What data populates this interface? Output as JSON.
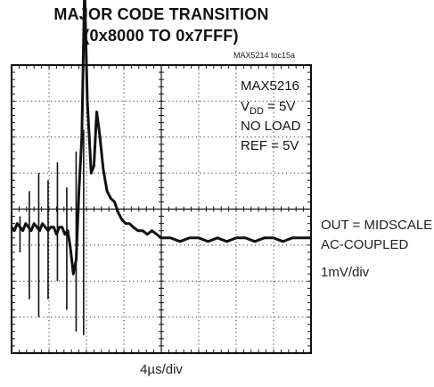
{
  "title": {
    "line1": "MAJOR CODE TRANSITION",
    "line2": "(0x8000 TO 0x7FFF)"
  },
  "figure_tag": "MAX5214 toc15a",
  "chart_data": {
    "type": "line",
    "title": "MAJOR CODE TRANSITION (0x8000 TO 0x7FFF)",
    "x_scale": "4µs/div",
    "y_scale": "1mV/div",
    "divisions": {
      "x": 8,
      "y": 8
    },
    "xlim": [
      0,
      32
    ],
    "ylim": [
      -4,
      4
    ],
    "x_unit": "µs",
    "y_unit": "mV",
    "grid": true,
    "annotations": {
      "device": "MAX5216",
      "vdd_prefix": "V",
      "vdd_sub": "DD",
      "vdd_value": " = 5V",
      "load": "NO LOAD",
      "ref": "REF = 5V"
    },
    "waveform": {
      "name": "OUT",
      "x": [
        0,
        0.3,
        0.6,
        0.9,
        1.2,
        1.5,
        1.8,
        2.1,
        2.4,
        2.7,
        3.0,
        3.3,
        3.6,
        3.9,
        4.2,
        4.5,
        4.8,
        5.1,
        5.4,
        5.7,
        6.0,
        6.3,
        6.6,
        6.9,
        7.2,
        7.5,
        7.8,
        8.1,
        8.5,
        8.8,
        9.1,
        9.4,
        9.8,
        10.2,
        10.6,
        11.0,
        11.4,
        11.8,
        12.2,
        12.6,
        13.0,
        13.5,
        14.0,
        14.5,
        15.0,
        15.5,
        16.0,
        17.0,
        18.0,
        19.0,
        20.0,
        21.0,
        22.0,
        23.0,
        24.0,
        25.0,
        26.0,
        27.0,
        28.0,
        29.0,
        30.0,
        31.0,
        32.0
      ],
      "y": [
        -0.5,
        -0.6,
        -0.4,
        -0.5,
        -0.6,
        -0.4,
        -0.5,
        -0.6,
        -0.4,
        -0.5,
        -0.6,
        -0.4,
        -0.5,
        -0.6,
        -0.5,
        -0.5,
        -0.7,
        -0.5,
        -0.5,
        -0.7,
        -0.6,
        -1.1,
        -1.8,
        -1.4,
        0.5,
        2.0,
        6.2,
        3.0,
        1.0,
        1.2,
        2.7,
        2.1,
        1.1,
        0.5,
        0.3,
        0.2,
        -0.1,
        -0.3,
        -0.4,
        -0.4,
        -0.5,
        -0.6,
        -0.6,
        -0.7,
        -0.6,
        -0.7,
        -0.8,
        -0.8,
        -0.9,
        -0.8,
        -0.8,
        -0.9,
        -0.8,
        -0.9,
        -0.8,
        -0.8,
        -0.9,
        -0.8,
        -0.8,
        -0.9,
        -0.8,
        -0.8,
        -0.8
      ]
    },
    "glitch_spikes": {
      "x": [
        0.9,
        1.9,
        2.9,
        3.9,
        4.9,
        5.9,
        6.9,
        7.7
      ],
      "top": [
        -0.2,
        0.5,
        1.0,
        0.8,
        1.3,
        0.6,
        1.6,
        2.2
      ],
      "bottom": [
        -1.2,
        -2.5,
        -3.0,
        -2.5,
        -2.0,
        -2.8,
        -3.4,
        -3.5
      ]
    },
    "output_labels": {
      "line1": "OUT = MIDSCALE",
      "line2": "AC-COUPLED",
      "scale": "1mV/div"
    }
  }
}
